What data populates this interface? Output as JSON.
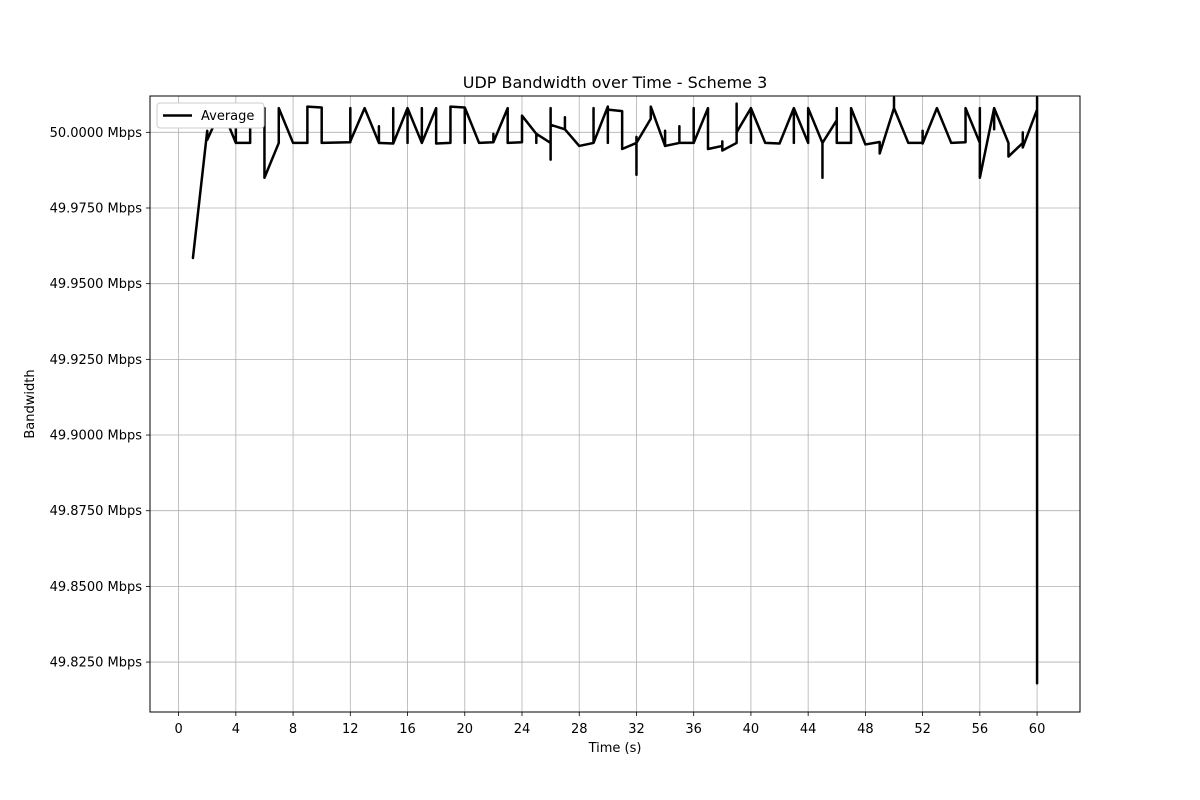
{
  "chart_data": {
    "type": "line",
    "title": "UDP Bandwidth over Time - Scheme 3",
    "xlabel": "Time (s)",
    "ylabel": "Bandwidth",
    "xlim": [
      -2,
      63
    ],
    "ylim": [
      49.8085,
      50.012
    ],
    "x_ticks": [
      0,
      4,
      8,
      12,
      16,
      20,
      24,
      28,
      32,
      36,
      40,
      44,
      48,
      52,
      56,
      60
    ],
    "x_tick_labels": [
      "0",
      "4",
      "8",
      "12",
      "16",
      "20",
      "24",
      "28",
      "32",
      "36",
      "40",
      "44",
      "48",
      "52",
      "56",
      "60"
    ],
    "y_ticks": [
      49.825,
      49.85,
      49.875,
      49.9,
      49.925,
      49.95,
      49.975,
      50.0
    ],
    "y_tick_labels": [
      "49.8250 Mbps",
      "49.8500 Mbps",
      "49.8750 Mbps",
      "49.9000 Mbps",
      "49.9250 Mbps",
      "49.9500 Mbps",
      "49.9750 Mbps",
      "50.0000 Mbps"
    ],
    "grid": true,
    "legend_position": "upper-left",
    "series": [
      {
        "name": "Average",
        "color": "#000000",
        "points": [
          [
            1.0,
            49.9585
          ],
          [
            2.0,
            50.0005
          ],
          [
            2.0,
            49.9975
          ],
          [
            3.0,
            50.008
          ],
          [
            4.0,
            49.9965
          ],
          [
            4.0,
            50.008
          ],
          [
            4.0,
            49.9965
          ],
          [
            5.0,
            49.9965
          ],
          [
            5.0,
            50.008
          ],
          [
            6.0,
            50.008
          ],
          [
            6.0,
            49.985
          ],
          [
            7.0,
            49.9965
          ],
          [
            7.0,
            50.008
          ],
          [
            8.0,
            49.9965
          ],
          [
            9.0,
            49.9965
          ],
          [
            9.0,
            50.0085
          ],
          [
            10.0,
            50.0082
          ],
          [
            10.0,
            49.9965
          ],
          [
            12.0,
            49.9967
          ],
          [
            12.0,
            50.008
          ],
          [
            12.0,
            49.997
          ],
          [
            13.0,
            50.008
          ],
          [
            14.0,
            49.9965
          ],
          [
            14.0,
            50.002
          ],
          [
            14.0,
            49.9965
          ],
          [
            15.0,
            49.9963
          ],
          [
            15.0,
            50.008
          ],
          [
            15.0,
            49.9963
          ],
          [
            16.0,
            50.008
          ],
          [
            16.0,
            49.9965
          ],
          [
            16.0,
            50.008
          ],
          [
            17.0,
            49.9965
          ],
          [
            17.0,
            50.008
          ],
          [
            17.0,
            49.9965
          ],
          [
            18.0,
            50.008
          ],
          [
            18.0,
            49.9963
          ],
          [
            19.0,
            49.9965
          ],
          [
            19.0,
            50.0085
          ],
          [
            20.0,
            50.0082
          ],
          [
            20.0,
            49.9965
          ],
          [
            20.0,
            50.0082
          ],
          [
            21.0,
            49.9965
          ],
          [
            22.0,
            49.9967
          ],
          [
            22.0,
            49.9995
          ],
          [
            22.0,
            49.9967
          ],
          [
            23.0,
            50.008
          ],
          [
            23.0,
            49.9965
          ],
          [
            24.0,
            49.9967
          ],
          [
            24.0,
            50.0055
          ],
          [
            25.0,
            49.9995
          ],
          [
            25.0,
            49.9965
          ],
          [
            25.0,
            49.9995
          ],
          [
            26.0,
            49.9965
          ],
          [
            26.0,
            49.991
          ],
          [
            26.0,
            50.008
          ],
          [
            26.0,
            50.0025
          ],
          [
            27.0,
            50.001
          ],
          [
            27.0,
            50.005
          ],
          [
            27.0,
            50.001
          ],
          [
            28.0,
            49.9955
          ],
          [
            29.0,
            49.9965
          ],
          [
            29.0,
            50.008
          ],
          [
            29.0,
            49.9965
          ],
          [
            30.0,
            50.0085
          ],
          [
            30.0,
            49.9965
          ],
          [
            30.0,
            50.0075
          ],
          [
            31.0,
            50.007
          ],
          [
            31.0,
            49.9945
          ],
          [
            32.0,
            49.9965
          ],
          [
            32.0,
            49.986
          ],
          [
            32.0,
            49.9985
          ],
          [
            32.0,
            49.9965
          ],
          [
            33.0,
            50.0045
          ],
          [
            33.0,
            50.0085
          ],
          [
            34.0,
            49.9955
          ],
          [
            34.0,
            50.0005
          ],
          [
            34.0,
            49.9955
          ],
          [
            35.0,
            49.9965
          ],
          [
            35.0,
            50.002
          ],
          [
            35.0,
            49.9965
          ],
          [
            36.0,
            49.9965
          ],
          [
            36.0,
            50.008
          ],
          [
            36.0,
            49.9965
          ],
          [
            37.0,
            50.008
          ],
          [
            37.0,
            49.9945
          ],
          [
            38.0,
            49.9955
          ],
          [
            38.0,
            49.997
          ],
          [
            38.0,
            49.994
          ],
          [
            39.0,
            49.9965
          ],
          [
            39.0,
            50.0095
          ],
          [
            39.0,
            50.0
          ],
          [
            40.0,
            50.008
          ],
          [
            40.0,
            49.9965
          ],
          [
            40.0,
            50.008
          ],
          [
            41.0,
            49.9965
          ],
          [
            42.0,
            49.9963
          ],
          [
            43.0,
            50.008
          ],
          [
            43.0,
            49.9965
          ],
          [
            43.0,
            50.008
          ],
          [
            44.0,
            49.9965
          ],
          [
            44.0,
            50.008
          ],
          [
            45.0,
            49.9965
          ],
          [
            45.0,
            49.985
          ],
          [
            45.0,
            49.9965
          ],
          [
            46.0,
            50.004
          ],
          [
            46.0,
            50.008
          ],
          [
            46.0,
            49.9965
          ],
          [
            47.0,
            49.9965
          ],
          [
            47.0,
            50.008
          ],
          [
            48.0,
            49.996
          ],
          [
            49.0,
            49.9968
          ],
          [
            49.0,
            49.993
          ],
          [
            50.0,
            50.008
          ],
          [
            50.0,
            50.0115
          ],
          [
            50.0,
            50.008
          ],
          [
            51.0,
            49.9965
          ],
          [
            52.0,
            49.9965
          ],
          [
            52.0,
            50.0005
          ],
          [
            52.0,
            49.9963
          ],
          [
            53.0,
            50.008
          ],
          [
            54.0,
            49.9965
          ],
          [
            55.0,
            49.9967
          ],
          [
            55.0,
            50.008
          ],
          [
            56.0,
            49.9965
          ],
          [
            56.0,
            50.008
          ],
          [
            56.0,
            49.985
          ],
          [
            57.0,
            50.008
          ],
          [
            57.0,
            50.001
          ],
          [
            57.0,
            50.008
          ],
          [
            58.0,
            49.9965
          ],
          [
            58.0,
            49.992
          ],
          [
            59.0,
            49.9965
          ],
          [
            59.0,
            50.0
          ],
          [
            59.0,
            49.995
          ],
          [
            60.0,
            50.0075
          ],
          [
            60.0,
            50.0115
          ],
          [
            60.0,
            49.818
          ]
        ]
      }
    ]
  }
}
